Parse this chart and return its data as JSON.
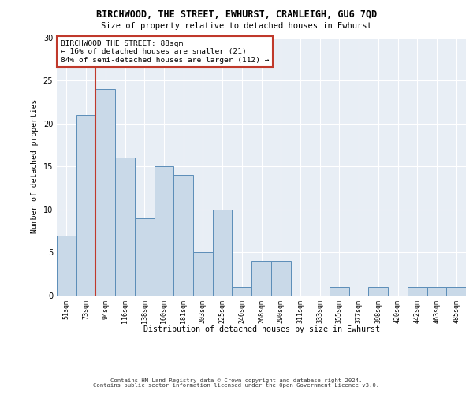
{
  "title": "BIRCHWOOD, THE STREET, EWHURST, CRANLEIGH, GU6 7QD",
  "subtitle": "Size of property relative to detached houses in Ewhurst",
  "xlabel": "Distribution of detached houses by size in Ewhurst",
  "ylabel": "Number of detached properties",
  "categories": [
    "51sqm",
    "73sqm",
    "94sqm",
    "116sqm",
    "138sqm",
    "160sqm",
    "181sqm",
    "203sqm",
    "225sqm",
    "246sqm",
    "268sqm",
    "290sqm",
    "311sqm",
    "333sqm",
    "355sqm",
    "377sqm",
    "398sqm",
    "420sqm",
    "442sqm",
    "463sqm",
    "485sqm"
  ],
  "values": [
    7,
    21,
    24,
    16,
    9,
    15,
    14,
    5,
    10,
    1,
    4,
    4,
    0,
    0,
    1,
    0,
    1,
    0,
    1,
    1,
    1
  ],
  "bar_color": "#c9d9e8",
  "bar_edge_color": "#5b8db8",
  "annotation_box_text": "BIRCHWOOD THE STREET: 88sqm\n← 16% of detached houses are smaller (21)\n84% of semi-detached houses are larger (112) →",
  "annotation_box_color": "white",
  "annotation_box_edge_color": "#c0392b",
  "vline_x": 1.5,
  "vline_color": "#c0392b",
  "ylim": [
    0,
    30
  ],
  "yticks": [
    0,
    5,
    10,
    15,
    20,
    25,
    30
  ],
  "bg_color": "#e8eef5",
  "footer_line1": "Contains HM Land Registry data © Crown copyright and database right 2024.",
  "footer_line2": "Contains public sector information licensed under the Open Government Licence v3.0."
}
